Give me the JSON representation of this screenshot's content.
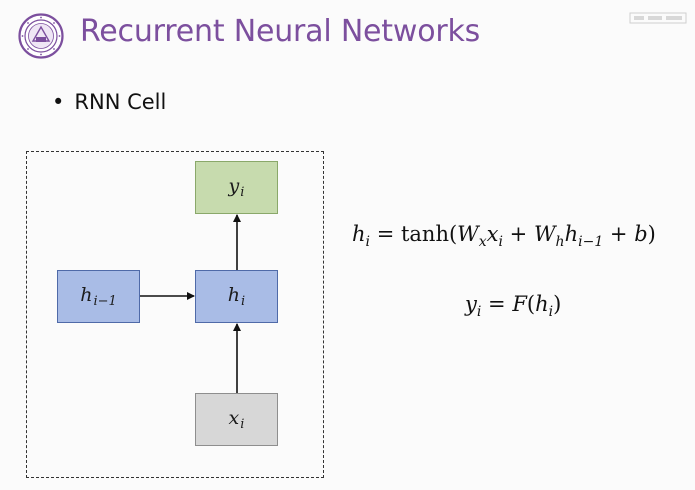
{
  "header": {
    "title": "Recurrent Neural Networks",
    "logo_icon": "university-seal-icon",
    "corner_icon": "watermark-icon"
  },
  "bullet": {
    "symbol": "•",
    "text": "RNN Cell"
  },
  "diagram": {
    "nodes": {
      "output": {
        "base": "y",
        "sub": "i",
        "color": "#c7dbae"
      },
      "prev_hidden": {
        "base": "h",
        "sub": "i−1",
        "color": "#a9bce6"
      },
      "hidden": {
        "base": "h",
        "sub": "i",
        "color": "#a9bce6"
      },
      "input": {
        "base": "x",
        "sub": "i",
        "color": "#d7d7d7"
      }
    },
    "edges": [
      {
        "from": "prev_hidden",
        "to": "hidden"
      },
      {
        "from": "input",
        "to": "hidden"
      },
      {
        "from": "hidden",
        "to": "output"
      }
    ]
  },
  "equations": {
    "eq1": {
      "lhs_base": "h",
      "lhs_sub": "i",
      "equals": " = ",
      "func": "tanh(",
      "w1_base": "W",
      "w1_sub": "x",
      "x_base": "x",
      "x_sub": "i",
      "plus1": " + ",
      "w2_base": "W",
      "w2_sub": "h",
      "h_base": "h",
      "h_sub": "i−1",
      "plus2": " + ",
      "b": "b",
      "close": ")"
    },
    "eq2": {
      "lhs_base": "y",
      "lhs_sub": "i",
      "equals": " = ",
      "func": "F",
      "open": "(",
      "arg_base": "h",
      "arg_sub": "i",
      "close": ")"
    }
  }
}
